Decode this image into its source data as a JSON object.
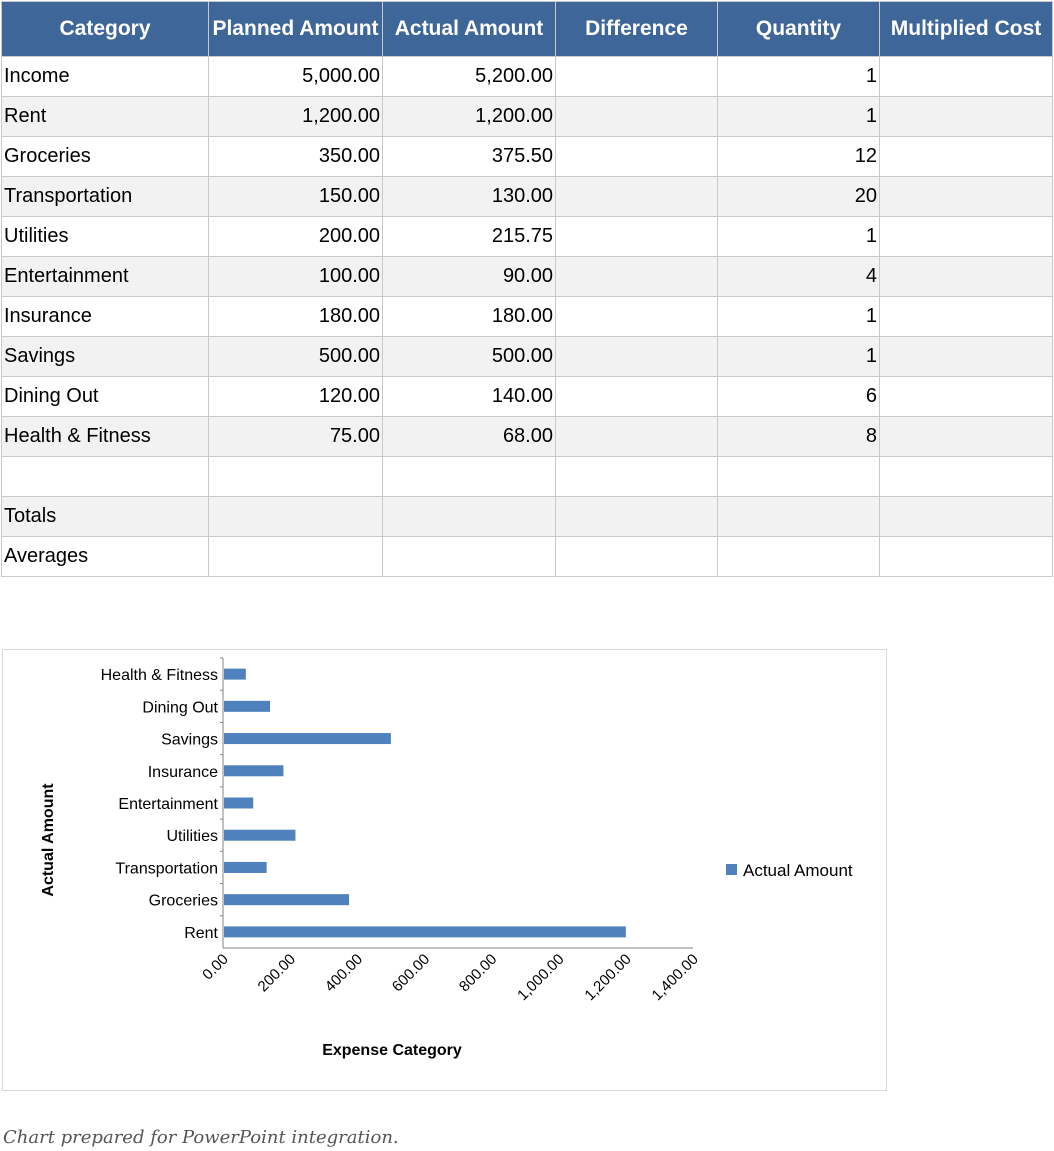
{
  "table": {
    "headers": [
      "Category",
      "Planned Amount",
      "Actual Amount",
      "Difference",
      "Quantity",
      "Multiplied Cost"
    ],
    "rows": [
      [
        "Income",
        "5,000.00",
        "5,200.00",
        "",
        "1",
        ""
      ],
      [
        "Rent",
        "1,200.00",
        "1,200.00",
        "",
        "1",
        ""
      ],
      [
        "Groceries",
        "350.00",
        "375.50",
        "",
        "12",
        ""
      ],
      [
        "Transportation",
        "150.00",
        "130.00",
        "",
        "20",
        ""
      ],
      [
        "Utilities",
        "200.00",
        "215.75",
        "",
        "1",
        ""
      ],
      [
        "Entertainment",
        "100.00",
        "90.00",
        "",
        "4",
        ""
      ],
      [
        "Insurance",
        "180.00",
        "180.00",
        "",
        "1",
        ""
      ],
      [
        "Savings",
        "500.00",
        "500.00",
        "",
        "1",
        ""
      ],
      [
        "Dining Out",
        "120.00",
        "140.00",
        "",
        "6",
        ""
      ],
      [
        "Health & Fitness",
        "75.00",
        "68.00",
        "",
        "8",
        ""
      ],
      [
        "",
        "",
        "",
        "",
        "",
        ""
      ],
      [
        "Totals",
        "",
        "",
        "",
        "",
        ""
      ],
      [
        "Averages",
        "",
        "",
        "",
        "",
        ""
      ]
    ]
  },
  "chart_data": {
    "type": "bar",
    "orientation": "horizontal",
    "categories": [
      "Rent",
      "Groceries",
      "Transportation",
      "Utilities",
      "Entertainment",
      "Insurance",
      "Savings",
      "Dining Out",
      "Health & Fitness"
    ],
    "series": [
      {
        "name": "Actual Amount",
        "values": [
          1200.0,
          375.5,
          130.0,
          215.75,
          90.0,
          180.0,
          500.0,
          140.0,
          68.0
        ],
        "color": "#4f81bd"
      }
    ],
    "xlim": [
      0,
      1400
    ],
    "x_ticks": [
      "0.00",
      "200.00",
      "400.00",
      "600.00",
      "800.00",
      "1,000.00",
      "1,200.00",
      "1,400.00"
    ],
    "xlabel": "Expense Category",
    "ylabel": "Actual Amount",
    "legend": "right",
    "grid": false
  },
  "caption": "Chart prepared for PowerPoint integration."
}
